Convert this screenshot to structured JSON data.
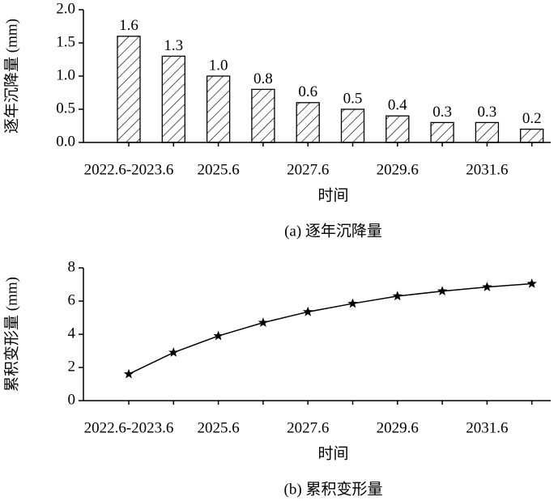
{
  "chart_data": [
    {
      "type": "bar",
      "y_label": "逐年沉降量 (mm)",
      "x_label": "时间",
      "caption": "(a) 逐年沉降量",
      "categories": [
        "2022.6-2023.6",
        null,
        "2025.6",
        null,
        "2027.6",
        null,
        "2029.6",
        null,
        "2031.6",
        null
      ],
      "values": [
        1.6,
        1.3,
        1.0,
        0.8,
        0.6,
        0.5,
        0.4,
        0.3,
        0.3,
        0.2
      ],
      "value_labels": [
        "1.6",
        "1.3",
        "1.0",
        "0.8",
        "0.6",
        "0.5",
        "0.4",
        "0.3",
        "0.3",
        "0.2"
      ],
      "color": "#000000",
      "ylim": [
        0,
        2
      ],
      "yticks": [
        {
          "value": 0,
          "label": "0.0"
        },
        {
          "value": 0.5,
          "label": "0.5"
        },
        {
          "value": 1,
          "label": "1.0"
        },
        {
          "value": 1.5,
          "label": "1.5"
        },
        {
          "value": 2,
          "label": "2.0"
        }
      ]
    },
    {
      "type": "line",
      "y_label": "累积变形量 (mm)",
      "x_label": "时间",
      "caption": "(b) 累积变形量",
      "categories": [
        "2022.6-2023.6",
        null,
        "2025.6",
        null,
        "2027.6",
        null,
        "2029.6",
        null,
        "2031.6",
        null
      ],
      "values": [
        1.6,
        2.9,
        3.9,
        4.7,
        5.35,
        5.85,
        6.3,
        6.6,
        6.85,
        7.05
      ],
      "color": "#000000",
      "marker": "star",
      "ylim": [
        0,
        8
      ],
      "yticks": [
        0,
        2,
        4,
        6,
        8
      ]
    }
  ]
}
